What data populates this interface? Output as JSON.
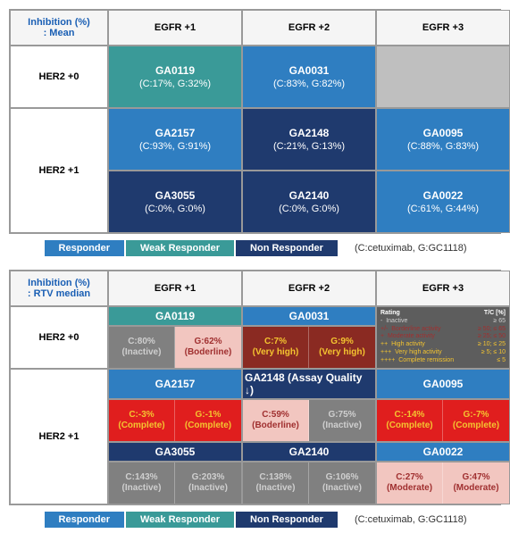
{
  "colors": {
    "responder": "#2f7ec1",
    "weak": "#3a9a98",
    "non": "#1f3a6e",
    "empty": "#bfbfbf",
    "white": "#ffffff",
    "header_text": "#1a5fb4",
    "gray_box": "#808080",
    "inactive_text": "#cfcfcf",
    "pink_box": "#f2c6c0",
    "pink_text": "#a03030",
    "dark_red": "#8a2a22",
    "yellow_text": "#f4c430",
    "red_box": "#e01e1e",
    "rating_bg": "#5d5d5d",
    "rating_red": "#d63a2a",
    "rating_green": "#3b8a3b"
  },
  "top": {
    "corner": "Inhibition (%)\n: Mean",
    "cols": [
      "EGFR +1",
      "EGFR +2",
      "EGFR +3"
    ],
    "rows": [
      {
        "label": "HER2 +0",
        "span": 1,
        "cells": [
          {
            "name": "GA0119",
            "val": "(C:17%, G:32%)",
            "bg": "weak"
          },
          {
            "name": "GA0031",
            "val": "(C:83%, G:82%)",
            "bg": "responder"
          },
          {
            "name": "",
            "val": "",
            "bg": "empty"
          }
        ]
      },
      {
        "label": "HER2 +1",
        "span": 2,
        "cells": [
          {
            "name": "GA2157",
            "val": "(C:93%, G:91%)",
            "bg": "responder"
          },
          {
            "name": "GA2148",
            "val": "(C:21%, G:13%)",
            "bg": "non"
          },
          {
            "name": "GA0095",
            "val": "(C:88%, G:83%)",
            "bg": "responder"
          },
          {
            "name": "GA3055",
            "val": "(C:0%, G:0%)",
            "bg": "non"
          },
          {
            "name": "GA2140",
            "val": "(C:0%, G:0%)",
            "bg": "non"
          },
          {
            "name": "GA0022",
            "val": "(C:61%, G:44%)",
            "bg": "responder"
          }
        ]
      }
    ]
  },
  "bottom": {
    "corner": "Inhibition (%)\n: RTV median",
    "cols": [
      "EGFR +1",
      "EGFR +2",
      "EGFR +3"
    ],
    "rows": [
      {
        "label": "HER2 +0",
        "headers": [
          {
            "text": "GA0119",
            "bg": "weak"
          },
          {
            "text": "GA0031",
            "bg": "responder"
          },
          {
            "rating": true
          }
        ],
        "pairs": [
          {
            "left": {
              "t1": "C:80%",
              "t2": "(Inactive)",
              "bg": "gray_box",
              "fg": "inactive_text"
            },
            "right": {
              "t1": "G:62%",
              "t2": "(Boderline)",
              "bg": "pink_box",
              "fg": "pink_text"
            }
          },
          {
            "left": {
              "t1": "C:7%",
              "t2": "(Very high)",
              "bg": "dark_red",
              "fg": "yellow_text"
            },
            "right": {
              "t1": "G:9%",
              "t2": "(Very high)",
              "bg": "dark_red",
              "fg": "yellow_text"
            }
          },
          {
            "continued_rating": true
          }
        ]
      },
      {
        "label": "HER2 +1",
        "headers": [
          {
            "text": "GA2157",
            "bg": "responder"
          },
          {
            "text": "GA2148 (Assay Quality ↓)",
            "bg": "non"
          },
          {
            "text": "GA0095",
            "bg": "responder"
          }
        ],
        "pairs": [
          {
            "left": {
              "t1": "C:-3%",
              "t2": "(Complete)",
              "bg": "red_box",
              "fg": "yellow_text"
            },
            "right": {
              "t1": "G:-1%",
              "t2": "(Complete)",
              "bg": "red_box",
              "fg": "yellow_text"
            }
          },
          {
            "left": {
              "t1": "C:59%",
              "t2": "(Boderline)",
              "bg": "pink_box",
              "fg": "pink_text"
            },
            "right": {
              "t1": "G:75%",
              "t2": "(Inactive)",
              "bg": "gray_box",
              "fg": "inactive_text"
            }
          },
          {
            "left": {
              "t1": "C:-14%",
              "t2": "(Complete)",
              "bg": "red_box",
              "fg": "yellow_text"
            },
            "right": {
              "t1": "G:-7%",
              "t2": "(Complete)",
              "bg": "red_box",
              "fg": "yellow_text"
            }
          }
        ],
        "headers2": [
          {
            "text": "GA3055",
            "bg": "non"
          },
          {
            "text": "GA2140",
            "bg": "non"
          },
          {
            "text": "GA0022",
            "bg": "responder"
          }
        ],
        "pairs2": [
          {
            "left": {
              "t1": "C:143%",
              "t2": "(Inactive)",
              "bg": "gray_box",
              "fg": "inactive_text"
            },
            "right": {
              "t1": "G:203%",
              "t2": "(Inactive)",
              "bg": "gray_box",
              "fg": "inactive_text"
            }
          },
          {
            "left": {
              "t1": "C:138%",
              "t2": "(Inactive)",
              "bg": "gray_box",
              "fg": "inactive_text"
            },
            "right": {
              "t1": "G:106%",
              "t2": "(Inactive)",
              "bg": "gray_box",
              "fg": "inactive_text"
            }
          },
          {
            "left": {
              "t1": "C:27%",
              "t2": "(Moderate)",
              "bg": "pink_box",
              "fg": "pink_text"
            },
            "right": {
              "t1": "G:47%",
              "t2": "(Moderate)",
              "bg": "pink_box",
              "fg": "pink_text"
            }
          }
        ]
      }
    ]
  },
  "rating": {
    "title_left": "Rating",
    "title_right": "T/C [%]",
    "rows": [
      {
        "l": "-",
        "m": "Inactive",
        "r": "≥ 65",
        "fg": "inactive_text"
      },
      {
        "l": "+/-",
        "m": "Borderline activity",
        "r": "≥ 50; ≤ 65",
        "fg": "pink_text",
        "bg": "pink_box"
      },
      {
        "l": "+",
        "m": "Moderate activity",
        "r": "≥ 25; ≤ 50",
        "fg": "pink_text",
        "bg": "pink_box"
      },
      {
        "l": "++",
        "m": "High activity",
        "r": "≥ 10; ≤ 25",
        "fg": "yellow_text",
        "bg": "rating_red"
      },
      {
        "l": "+++",
        "m": "Very high activity",
        "r": "≥ 5; ≤ 10",
        "fg": "yellow_text",
        "bg": "rating_red"
      },
      {
        "l": "++++",
        "m": "Complete remission",
        "r": "≤ 5",
        "fg": "yellow_text",
        "bg": "rating_green"
      }
    ]
  },
  "legend": {
    "items": [
      {
        "label": "Responder",
        "bg": "responder"
      },
      {
        "label": "Weak Responder",
        "bg": "weak"
      },
      {
        "label": "Non Responder",
        "bg": "non"
      }
    ],
    "note": "(C:cetuximab, G:GC1118)"
  }
}
